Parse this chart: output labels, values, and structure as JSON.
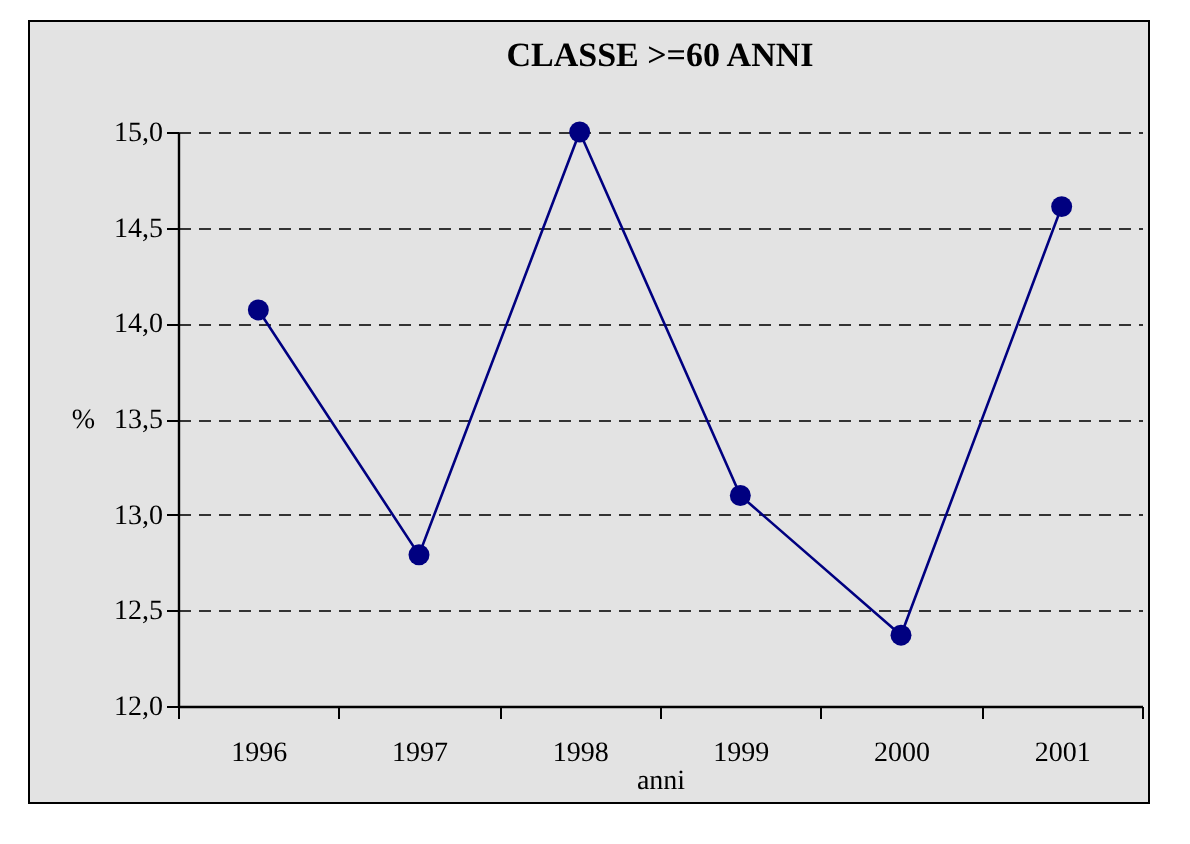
{
  "chart_data": {
    "type": "line",
    "title": "CLASSE >=60 ANNI",
    "xlabel": "anni",
    "ylabel": "%",
    "categories": [
      "1996",
      "1997",
      "1998",
      "1999",
      "2000",
      "2001"
    ],
    "series": [
      {
        "color": "#000080",
        "values": [
          14.07,
          12.79,
          15.0,
          13.1,
          12.37,
          14.61
        ]
      }
    ],
    "ylim": [
      12,
      15
    ],
    "yticks": [
      {
        "value": 12,
        "label": "12,0"
      },
      {
        "value": 12.5,
        "label": "12,5"
      },
      {
        "value": 13,
        "label": "13,0"
      },
      {
        "value": 13.5,
        "label": "13,5"
      },
      {
        "value": 14,
        "label": "14,0"
      },
      {
        "value": 14.5,
        "label": "14,5"
      },
      {
        "value": 15,
        "label": "15,0"
      }
    ],
    "grid": "y",
    "marker": "circle",
    "line_style": "solid"
  }
}
